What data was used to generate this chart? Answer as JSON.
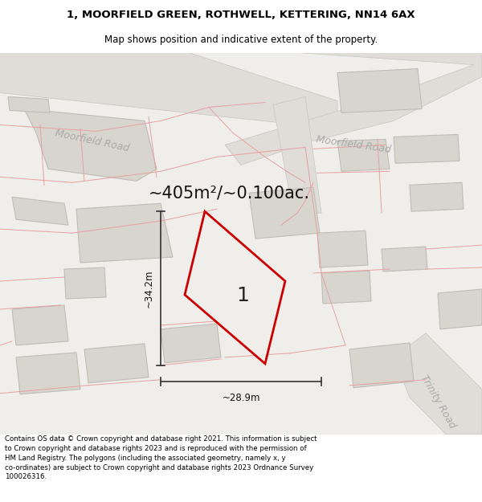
{
  "title_line1": "1, MOORFIELD GREEN, ROTHWELL, KETTERING, NN14 6AX",
  "title_line2": "Map shows position and indicative extent of the property.",
  "area_text": "~405m²/~0.100ac.",
  "label_number": "1",
  "dim_horizontal": "~28.9m",
  "dim_vertical": "~34.2m",
  "road_label_1": "Moorfield Road",
  "road_label_2": "Moorfield Road",
  "road_label_3": "Trinity Road",
  "footer_text": "Contains OS data © Crown copyright and database right 2021. This information is subject to Crown copyright and database rights 2023 and is reproduced with the permission of HM Land Registry. The polygons (including the associated geometry, namely x, y co-ordinates) are subject to Crown copyright and database rights 2023 Ordnance Survey 100026316.",
  "map_bg": "#f0eeea",
  "plot_fill": "#f0eeea",
  "plot_stroke": "#cc0000",
  "road_fill": "#e0ddd8",
  "road_edge": "#c8c4be",
  "building_fill": "#d8d4ce",
  "building_edge": "#c0bcb6",
  "boundary_color": "#e8a0a0",
  "dim_color": "#333333",
  "road_label_color": "#aaaaaa",
  "footer_bg": "#ffffff",
  "title_fontsize": 9.5,
  "subtitle_fontsize": 8.5,
  "area_fontsize": 15,
  "dim_fontsize": 8.5,
  "road_label_fontsize": 9,
  "number_fontsize": 18,
  "footer_fontsize": 6.2
}
